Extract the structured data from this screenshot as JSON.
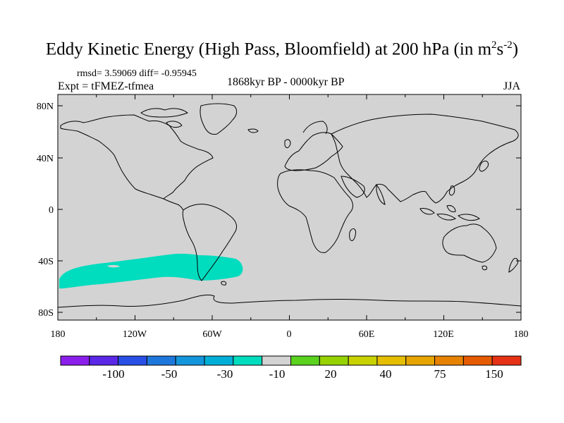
{
  "header": {
    "title": "Eddy Kinetic Energy (High Pass, Bloomfield) at 200 hPa (in m",
    "title_sup1": "2",
    "title_mid": "s",
    "title_sup2": "-2",
    "title_end": ")",
    "stats": "rmsd= 3.59069 diff= -0.95945",
    "expt": "Expt = tFMEZ-tfmea",
    "period": "1868kyr BP - 0000kyr BP",
    "season": "JJA"
  },
  "map": {
    "background_color": "#d3d3d3",
    "coastline_color": "#000000",
    "anomaly_color": "#00dcbe",
    "anomaly_region": "Southern Ocean, 180W-60W and across southern South America, about 35S-55S",
    "lon_ticks": [
      "180",
      "120W",
      "60W",
      "0",
      "60E",
      "120E",
      "180"
    ],
    "lat_ticks": [
      "80N",
      "40N",
      "0",
      "40S",
      "80S"
    ]
  },
  "colorbar": {
    "colors": [
      "#8c1eeb",
      "#5a28e6",
      "#2850e6",
      "#1e78dc",
      "#1496dc",
      "#00afd7",
      "#00dcbe",
      "#d3d3d3",
      "#5ad21e",
      "#96d200",
      "#c8d200",
      "#e6be00",
      "#e6a500",
      "#e68200",
      "#e65a00",
      "#e63214"
    ],
    "labels": [
      "-100",
      "-50",
      "-30",
      "-10",
      "20",
      "40",
      "75",
      "150"
    ]
  }
}
